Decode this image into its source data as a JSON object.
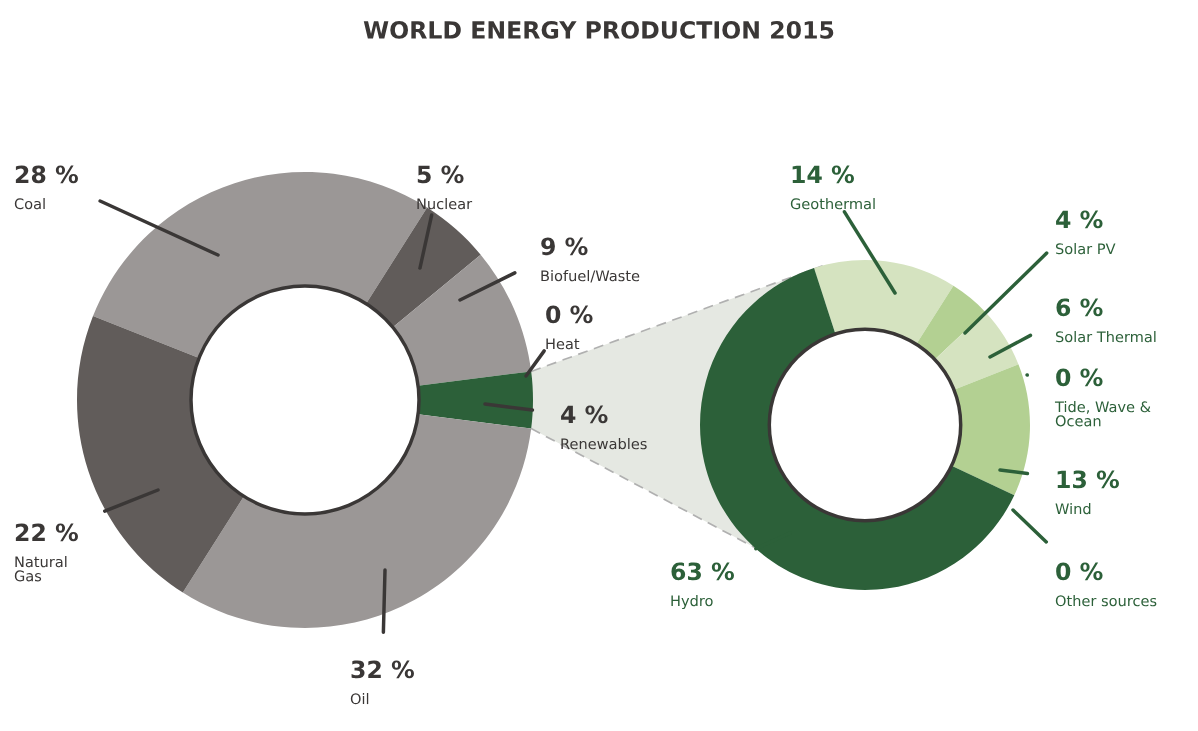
{
  "chart_data": [
    {
      "type": "donut",
      "title": "WORLD ENERGY PRODUCTION 2015",
      "categories": [
        "Coal",
        "Nuclear",
        "Biofuel/Waste",
        "Heat",
        "Renewables",
        "Oil",
        "Natural Gas"
      ],
      "values": [
        28,
        5,
        9,
        0,
        4,
        32,
        22
      ],
      "value_labels": [
        "28 %",
        "5 %",
        "9 %",
        "0 %",
        "4 %",
        "32 %",
        "22 %"
      ],
      "colors": [
        "#9b9796",
        "#615c5a",
        "#9b9796",
        "#9b9796",
        "#2c6039",
        "#9b9796",
        "#615c5a"
      ]
    },
    {
      "type": "donut",
      "categories": [
        "Geothermal",
        "Solar PV",
        "Solar Thermal",
        "Tide, Wave & Ocean",
        "Wind",
        "Other sources",
        "Hydro"
      ],
      "values": [
        14,
        4,
        6,
        0,
        13,
        0,
        63
      ],
      "value_labels": [
        "14 %",
        "4 %",
        "6 %",
        "0 %",
        "13 %",
        "0 %",
        "63 %"
      ],
      "colors": [
        "#d5e3c0",
        "#b3d092",
        "#d5e3c0",
        "#d5e3c0",
        "#b3d092",
        "#b3d092",
        "#2c6039"
      ]
    }
  ]
}
